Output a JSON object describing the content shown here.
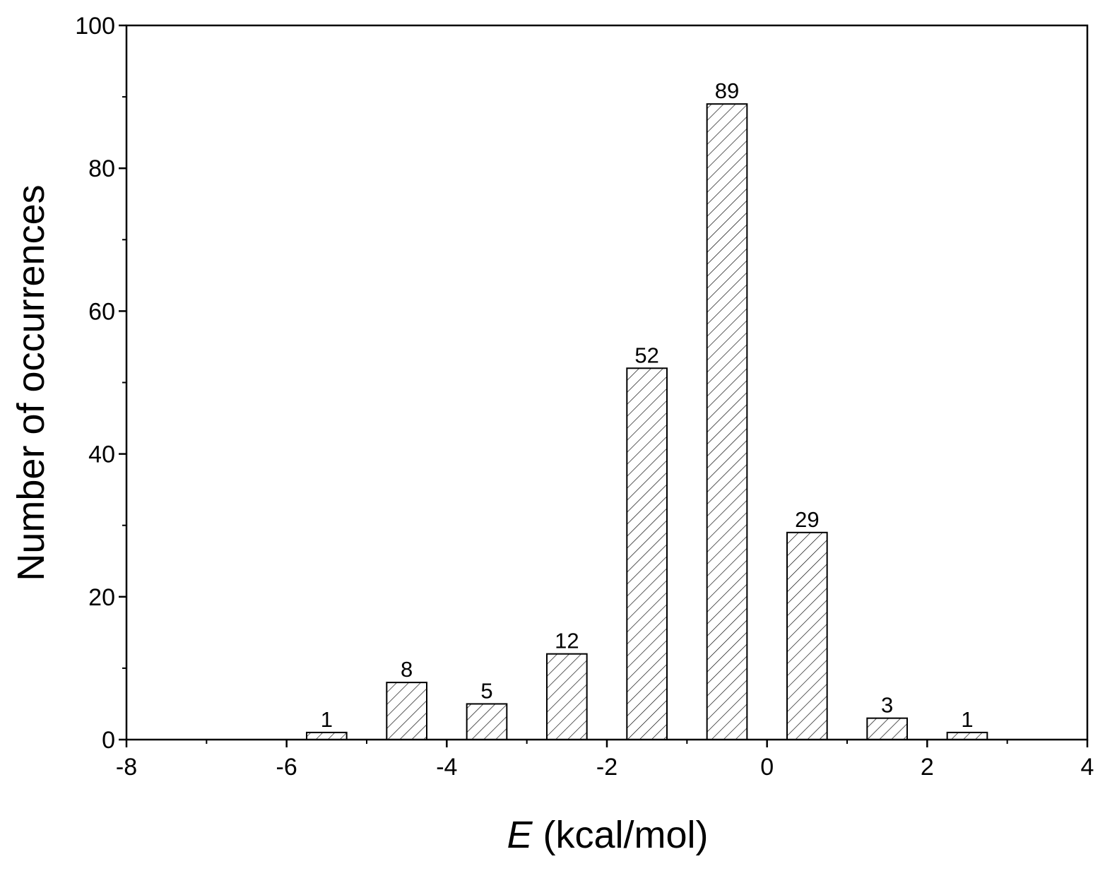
{
  "chart_data": {
    "type": "bar",
    "x": [
      -5.5,
      -4.5,
      -3.5,
      -2.5,
      -1.5,
      -0.5,
      0.5,
      1.5,
      2.5
    ],
    "values": [
      1,
      8,
      5,
      12,
      52,
      89,
      29,
      3,
      1
    ],
    "color": "#000000",
    "xlabel": {
      "symbol": "E",
      "unit": "(kcal/mol)"
    },
    "ylabel": "Number of occurrences",
    "xlim": [
      -8,
      4
    ],
    "xticks": [
      -8,
      -6,
      -4,
      -2,
      0,
      2,
      4
    ],
    "ylim": [
      0,
      100
    ],
    "yticks": [
      0,
      20,
      40,
      60,
      80,
      100
    ],
    "grid": false
  }
}
